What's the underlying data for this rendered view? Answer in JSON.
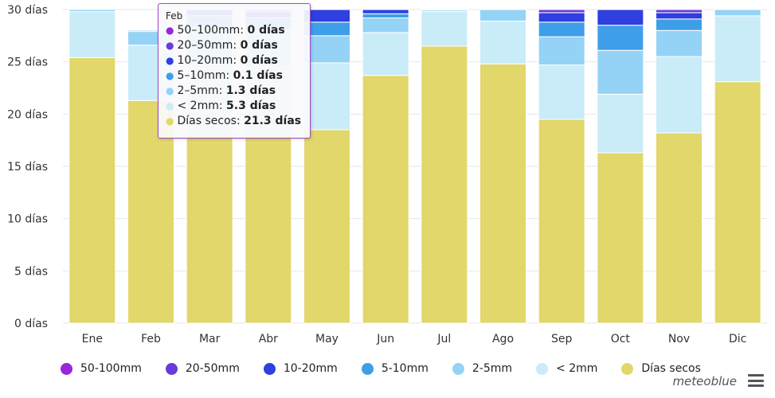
{
  "chart_data": {
    "type": "bar",
    "stacked": true,
    "categories": [
      "Ene",
      "Feb",
      "Mar",
      "Abr",
      "May",
      "Jun",
      "Jul",
      "Ago",
      "Sep",
      "Oct",
      "Nov",
      "Dic"
    ],
    "ylim": [
      0,
      30
    ],
    "yticks": [
      0,
      5,
      10,
      15,
      20,
      25,
      30
    ],
    "ytick_labels": [
      "0 días",
      "5 días",
      "10 días",
      "15 días",
      "20 días",
      "25 días",
      "30 días"
    ],
    "grid": true,
    "legend_position": "bottom",
    "series": [
      {
        "name": "Días secos",
        "color": "#e1d76a",
        "values": [
          25.4,
          21.3,
          18.0,
          18.0,
          18.5,
          23.7,
          26.5,
          24.8,
          19.5,
          16.3,
          18.2,
          23.1
        ]
      },
      {
        "name": "< 2mm",
        "color": "#c9ecf8",
        "values": [
          4.4,
          5.3,
          6.9,
          6.5,
          6.4,
          4.1,
          3.3,
          4.1,
          5.2,
          5.6,
          7.3,
          6.3
        ]
      },
      {
        "name": "2-5mm",
        "color": "#94d3f5",
        "values": [
          0.2,
          1.3,
          3.4,
          3.5,
          2.6,
          1.4,
          0.15,
          1.1,
          2.7,
          4.2,
          2.5,
          0.6
        ]
      },
      {
        "name": "5-10mm",
        "color": "#3f9ee8",
        "values": [
          0.0,
          0.1,
          1.1,
          1.2,
          1.3,
          0.4,
          0.05,
          0.0,
          1.4,
          2.4,
          1.1,
          0.0
        ]
      },
      {
        "name": "10-20mm",
        "color": "#2f3fe0",
        "values": [
          0.0,
          0.0,
          0.6,
          0.6,
          1.2,
          0.4,
          0.0,
          0.0,
          0.9,
          1.5,
          0.6,
          0.0
        ]
      },
      {
        "name": "20-50mm",
        "color": "#6b3adb",
        "values": [
          0.0,
          0.0,
          0.0,
          0.2,
          0.0,
          0.0,
          0.0,
          0.0,
          0.3,
          0.0,
          0.3,
          0.0
        ]
      },
      {
        "name": "50-100mm",
        "color": "#9727d8",
        "values": [
          0.0,
          0.0,
          0.0,
          0.0,
          0.0,
          0.0,
          0.0,
          0.0,
          0.0,
          0.0,
          0.0,
          0.0
        ]
      }
    ]
  },
  "legend": [
    {
      "label": "50-100mm",
      "color": "#9727d8"
    },
    {
      "label": "20-50mm",
      "color": "#6b3adb"
    },
    {
      "label": "10-20mm",
      "color": "#2f3fe0"
    },
    {
      "label": "5-10mm",
      "color": "#3f9ee8"
    },
    {
      "label": "2-5mm",
      "color": "#94d3f5"
    },
    {
      "label": "< 2mm",
      "color": "#c9ecf8"
    },
    {
      "label": "Días secos",
      "color": "#e1d76a"
    }
  ],
  "tooltip": {
    "title": "Feb",
    "rows": [
      {
        "label": "50–100mm: ",
        "value": "0 días",
        "color": "#9727d8"
      },
      {
        "label": "20–50mm: ",
        "value": "0 días",
        "color": "#6b3adb"
      },
      {
        "label": "10–20mm: ",
        "value": "0 días",
        "color": "#2f3fe0"
      },
      {
        "label": "5–10mm: ",
        "value": "0.1 días",
        "color": "#3f9ee8"
      },
      {
        "label": "2–5mm: ",
        "value": "1.3 días",
        "color": "#94d3f5"
      },
      {
        "label": "< 2mm: ",
        "value": "5.3 días",
        "color": "#c9ecf8"
      },
      {
        "label": "Días secos: ",
        "value": "21.3 días",
        "color": "#e1d76a"
      }
    ]
  },
  "brand": "meteoblue",
  "menu_icon": "hamburger-menu-icon"
}
